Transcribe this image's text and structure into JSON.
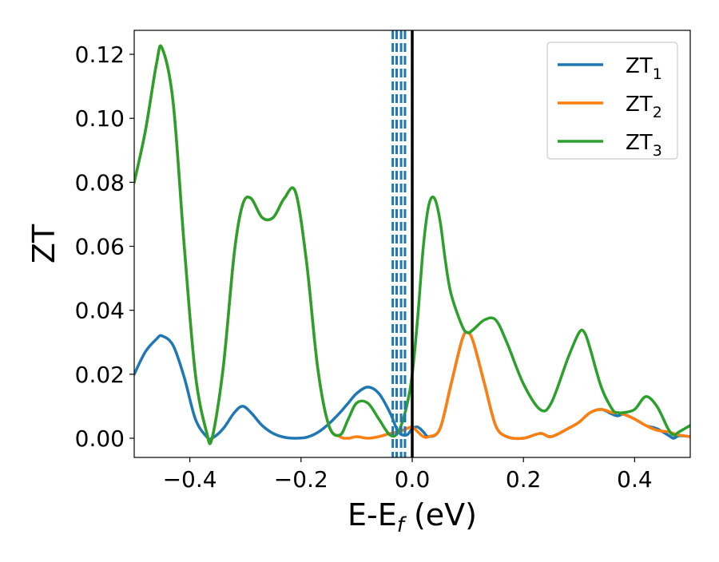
{
  "chart_data": {
    "type": "line",
    "title": "",
    "xlabel": "E-E",
    "xlabel_sub": "f",
    "xlabel_unit": " (eV)",
    "ylabel": "ZT",
    "xlim": [
      -0.5,
      0.5
    ],
    "ylim": [
      -0.006,
      0.1275
    ],
    "xticks": [
      -0.4,
      -0.2,
      0.0,
      0.2,
      0.4
    ],
    "xtick_labels": [
      "−0.4",
      "−0.2",
      "0.0",
      "0.2",
      "0.4"
    ],
    "yticks": [
      0.0,
      0.02,
      0.04,
      0.06,
      0.08,
      0.1,
      0.12
    ],
    "ytick_labels": [
      "0.00",
      "0.02",
      "0.04",
      "0.06",
      "0.08",
      "0.10",
      "0.12"
    ],
    "grid": false,
    "legend_position": "top-right",
    "reference_lines": [
      {
        "x": 0.0,
        "color": "#000000",
        "style": "solid"
      },
      {
        "x": -0.035,
        "color": "#1f77b4",
        "style": "dashed"
      },
      {
        "x": -0.028,
        "color": "#1f77b4",
        "style": "dashed"
      },
      {
        "x": -0.02,
        "color": "#1f77b4",
        "style": "dashed"
      },
      {
        "x": -0.013,
        "color": "#1f77b4",
        "style": "dashed"
      }
    ],
    "series": [
      {
        "name": "ZT",
        "sub": "1",
        "color": "#1f77b4",
        "x": [
          -0.5,
          -0.48,
          -0.46,
          -0.45,
          -0.43,
          -0.41,
          -0.39,
          -0.37,
          -0.36,
          -0.34,
          -0.32,
          -0.305,
          -0.29,
          -0.27,
          -0.25,
          -0.23,
          -0.21,
          -0.19,
          -0.17,
          -0.15,
          -0.13,
          -0.115,
          -0.1,
          -0.08,
          -0.06,
          -0.04,
          -0.025,
          -0.01,
          0.0,
          0.01,
          0.02,
          0.03,
          0.05,
          0.07,
          0.09,
          0.1,
          0.11,
          0.13,
          0.15,
          0.17,
          0.2,
          0.23,
          0.25,
          0.28,
          0.3,
          0.32,
          0.34,
          0.36,
          0.37,
          0.38,
          0.4,
          0.42,
          0.44,
          0.46,
          0.47,
          0.48,
          0.5
        ],
        "y": [
          0.02,
          0.027,
          0.031,
          0.032,
          0.029,
          0.019,
          0.006,
          0.0005,
          0.0,
          0.003,
          0.008,
          0.01,
          0.008,
          0.004,
          0.0015,
          0.0003,
          0.0,
          0.0003,
          0.0018,
          0.0045,
          0.008,
          0.011,
          0.014,
          0.016,
          0.014,
          0.008,
          0.002,
          0.001,
          0.003,
          0.0035,
          0.002,
          0.0005,
          0.003,
          0.017,
          0.031,
          0.033,
          0.03,
          0.017,
          0.004,
          0.0005,
          0.0,
          0.0015,
          0.0005,
          0.003,
          0.005,
          0.008,
          0.009,
          0.0075,
          0.007,
          0.0075,
          0.006,
          0.004,
          0.003,
          0.001,
          0.0,
          0.0008,
          0.0005
        ]
      },
      {
        "name": "ZT",
        "sub": "2",
        "color": "#ff7f0e",
        "x": [
          -0.5,
          -0.48,
          -0.46,
          -0.45,
          -0.43,
          -0.41,
          -0.39,
          -0.37,
          -0.36,
          -0.34,
          -0.32,
          -0.305,
          -0.29,
          -0.27,
          -0.25,
          -0.23,
          -0.21,
          -0.19,
          -0.17,
          -0.15,
          -0.13,
          -0.115,
          -0.1,
          -0.08,
          -0.06,
          -0.04,
          -0.025,
          -0.01,
          0.0,
          0.01,
          0.02,
          0.03,
          0.05,
          0.07,
          0.09,
          0.1,
          0.11,
          0.13,
          0.15,
          0.17,
          0.2,
          0.23,
          0.25,
          0.28,
          0.3,
          0.32,
          0.34,
          0.36,
          0.37,
          0.38,
          0.4,
          0.42,
          0.44,
          0.46,
          0.47,
          0.48,
          0.5
        ],
        "y": [
          0.08,
          0.096,
          0.117,
          0.122,
          0.105,
          0.06,
          0.02,
          0.002,
          0.0,
          0.022,
          0.058,
          0.073,
          0.075,
          0.069,
          0.069,
          0.075,
          0.077,
          0.055,
          0.022,
          0.004,
          0.0005,
          0.0,
          0.0005,
          0.0,
          0.0005,
          0.0015,
          0.002,
          0.003,
          0.0035,
          0.002,
          0.0005,
          0.0005,
          0.003,
          0.017,
          0.031,
          0.033,
          0.03,
          0.017,
          0.004,
          0.0005,
          0.0,
          0.0015,
          0.0005,
          0.003,
          0.005,
          0.008,
          0.009,
          0.008,
          0.008,
          0.0075,
          0.006,
          0.004,
          0.0025,
          0.002,
          0.0015,
          0.001,
          0.0005
        ]
      },
      {
        "name": "ZT",
        "sub": "3",
        "color": "#2ca02c",
        "x": [
          -0.5,
          -0.48,
          -0.46,
          -0.45,
          -0.43,
          -0.41,
          -0.39,
          -0.37,
          -0.36,
          -0.34,
          -0.32,
          -0.305,
          -0.29,
          -0.27,
          -0.25,
          -0.23,
          -0.21,
          -0.19,
          -0.17,
          -0.15,
          -0.13,
          -0.115,
          -0.1,
          -0.08,
          -0.06,
          -0.04,
          -0.025,
          -0.01,
          0.0,
          0.01,
          0.02,
          0.03,
          0.04,
          0.05,
          0.06,
          0.07,
          0.09,
          0.1,
          0.11,
          0.13,
          0.15,
          0.17,
          0.2,
          0.23,
          0.25,
          0.28,
          0.3,
          0.31,
          0.32,
          0.34,
          0.36,
          0.37,
          0.38,
          0.4,
          0.42,
          0.44,
          0.46,
          0.47,
          0.48,
          0.5
        ],
        "y": [
          0.08,
          0.096,
          0.117,
          0.122,
          0.105,
          0.06,
          0.02,
          0.002,
          0.0,
          0.022,
          0.058,
          0.073,
          0.075,
          0.069,
          0.069,
          0.075,
          0.077,
          0.055,
          0.022,
          0.004,
          0.001,
          0.006,
          0.011,
          0.011,
          0.006,
          0.001,
          0.002,
          0.01,
          0.02,
          0.038,
          0.06,
          0.073,
          0.075,
          0.068,
          0.055,
          0.045,
          0.035,
          0.033,
          0.034,
          0.037,
          0.037,
          0.03,
          0.017,
          0.009,
          0.011,
          0.025,
          0.033,
          0.033,
          0.028,
          0.016,
          0.009,
          0.008,
          0.008,
          0.009,
          0.013,
          0.01,
          0.003,
          0.001,
          0.002,
          0.004
        ]
      }
    ]
  }
}
